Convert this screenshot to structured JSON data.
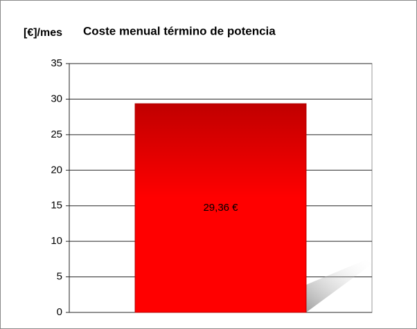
{
  "chart_data": {
    "type": "bar",
    "title": "Coste menual término de potencia",
    "y_label": "[€]/mes",
    "categories": [
      null
    ],
    "values": [
      29.36
    ],
    "value_labels": [
      "29,36 €"
    ],
    "color": "#ff0000",
    "ylim": [
      0,
      35
    ],
    "yticks": [
      0,
      5,
      10,
      15,
      20,
      25,
      30,
      35
    ],
    "grid": true
  }
}
